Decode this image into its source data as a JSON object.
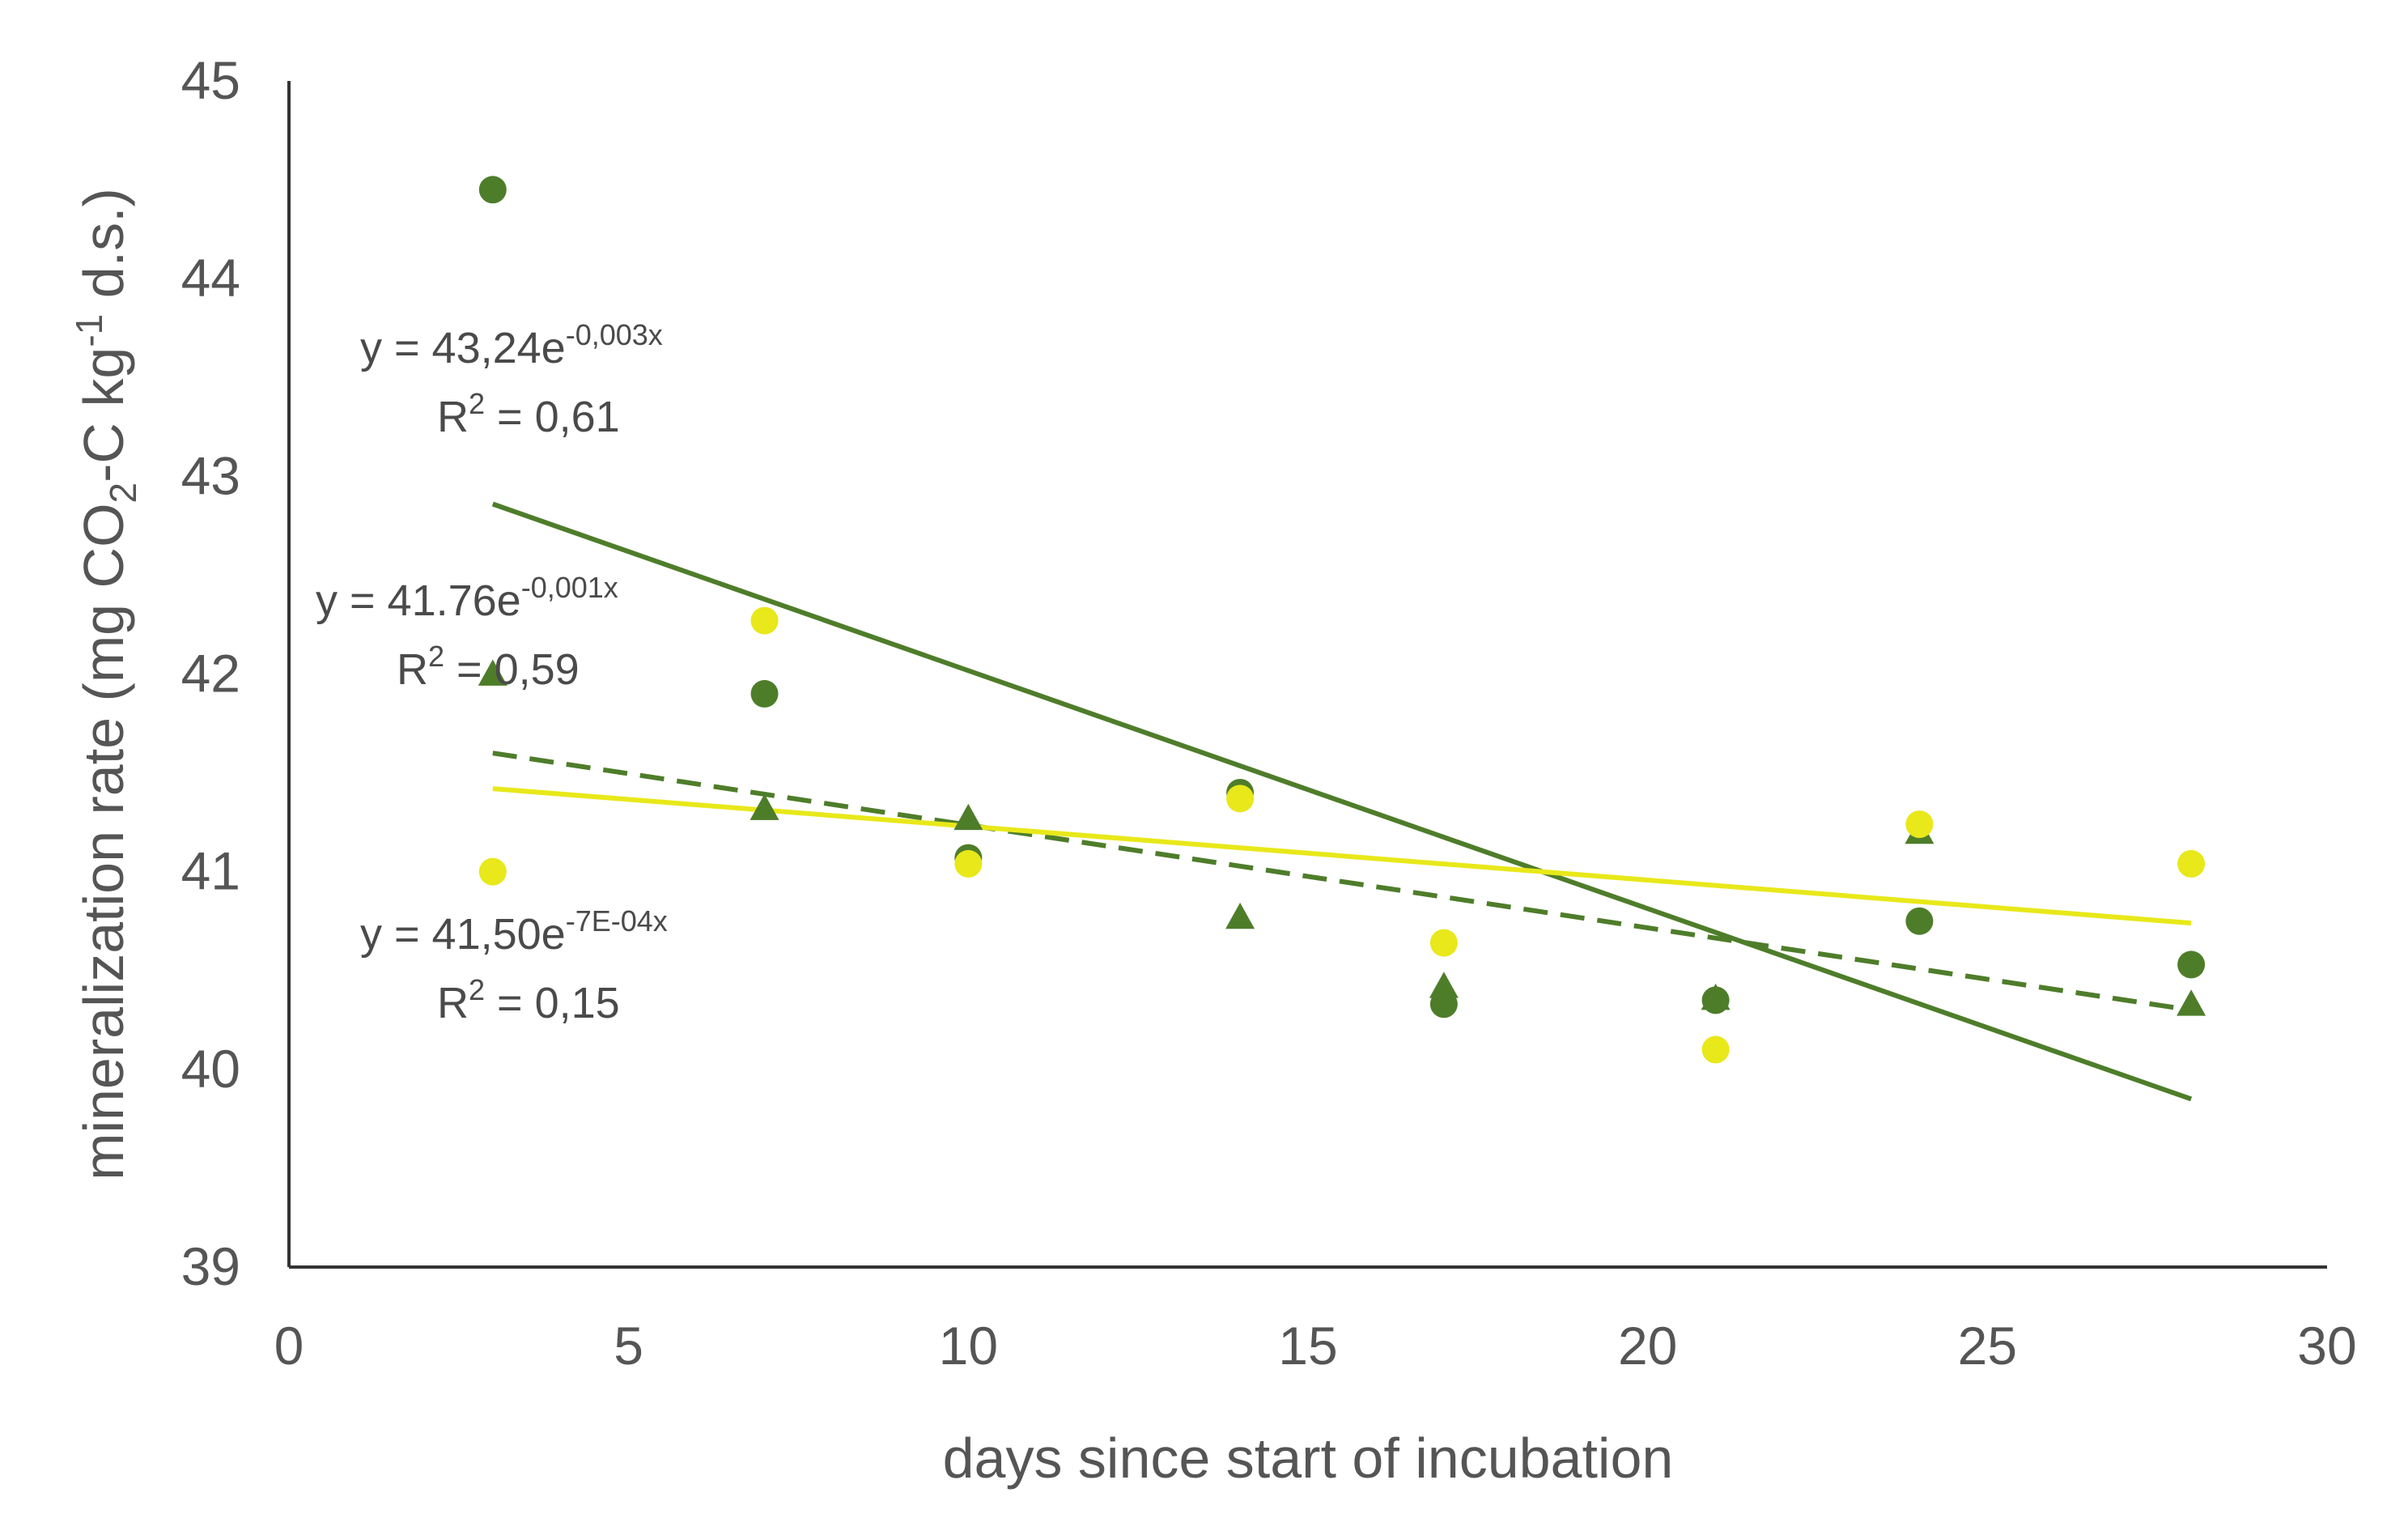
{
  "chart_data": {
    "type": "scatter",
    "title": "",
    "xlabel": "days since start of incubation",
    "ylabel": {
      "prefix": "mineralization rate  (mg CO",
      "sub": "2",
      "mid": "-C kg",
      "sup": "-1",
      "suffix": " d.s.)"
    },
    "xlim": [
      0,
      30
    ],
    "ylim": [
      39,
      45
    ],
    "xticks": [
      "0",
      "5",
      "10",
      "15",
      "20",
      "25",
      "30"
    ],
    "yticks": [
      "39",
      "40",
      "41",
      "42",
      "43",
      "44",
      "45"
    ],
    "grid": false,
    "legend": "none",
    "colors": {
      "dark_green": "#4e7d2a",
      "yellow": "#e8e81a",
      "axis": "#333333"
    },
    "series": [
      {
        "name": "dark green circles",
        "marker": "circle",
        "color": "#4e7d2a",
        "x": [
          3,
          7,
          10,
          14,
          17,
          21,
          24,
          28
        ],
        "y": [
          44.45,
          41.9,
          41.07,
          41.4,
          40.33,
          40.35,
          40.75,
          40.53
        ]
      },
      {
        "name": "dark green triangles",
        "marker": "triangle",
        "color": "#4e7d2a",
        "x": [
          3,
          7,
          10,
          14,
          17,
          21,
          24,
          28
        ],
        "y": [
          42.0,
          41.32,
          41.27,
          40.77,
          40.42,
          40.36,
          41.2,
          40.33
        ]
      },
      {
        "name": "yellow circles",
        "marker": "circle",
        "color": "#e8e81a",
        "x": [
          3,
          7,
          10,
          14,
          17,
          21,
          24,
          28
        ],
        "y": [
          41.0,
          42.27,
          41.04,
          41.37,
          40.64,
          40.1,
          41.24,
          41.04
        ]
      }
    ],
    "trendlines": [
      {
        "name": "circles trend",
        "color": "#4e7d2a",
        "dash": "solid",
        "x": [
          3,
          28
        ],
        "y": [
          42.86,
          39.85
        ]
      },
      {
        "name": "triangles trend",
        "color": "#4e7d2a",
        "dash": "dashed",
        "x": [
          3,
          28
        ],
        "y": [
          41.6,
          40.3
        ]
      },
      {
        "name": "yellow trend",
        "color": "#e8e81a",
        "dash": "solid",
        "x": [
          3,
          28
        ],
        "y": [
          41.42,
          40.74
        ]
      }
    ],
    "annotations": [
      {
        "eq_base": "y = 43,24e",
        "eq_exp": "-0,003x",
        "r_base": "R",
        "r_sup": "2",
        "r_val": " = 0,61"
      },
      {
        "eq_base": "y = 41.76e",
        "eq_exp": "-0,001x",
        "r_base": "R",
        "r_sup": "2",
        "r_val": " = 0,59"
      },
      {
        "eq_base": "y = 41,50e",
        "eq_exp": "-7E-04x",
        "r_base": "R",
        "r_sup": "2",
        "r_val": " = 0,15"
      }
    ]
  }
}
